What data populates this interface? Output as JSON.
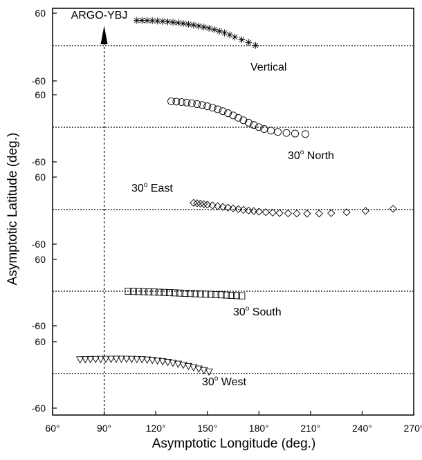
{
  "chart_data": {
    "type": "scatter",
    "xlabel": "Asymptotic Longitude (deg.)",
    "ylabel": "Asymptotic Latitude (deg.)",
    "xlim": [
      60,
      270
    ],
    "x_ticks": [
      "60°",
      "90°",
      "120°",
      "150°",
      "180°",
      "210°",
      "240°",
      "270°"
    ],
    "x_tick_values": [
      60,
      90,
      120,
      150,
      180,
      210,
      240,
      270
    ],
    "ylim_per_panel": [
      -60,
      60
    ],
    "y_tick_top": "60",
    "y_tick_bottom": "-60",
    "grid": false,
    "reference_line": {
      "x": 90,
      "label": "ARGO-YBJ"
    },
    "panels": [
      {
        "name": "Vertical",
        "label": "Vertical",
        "marker": "asterisk",
        "x": [
          109,
          112,
          115,
          118,
          121,
          124,
          127,
          130,
          133,
          136,
          139,
          142,
          145,
          148,
          151,
          154,
          157,
          160,
          163,
          166,
          170,
          174,
          178
        ],
        "y": [
          46.5,
          46.5,
          46.3,
          46,
          45.5,
          44.9,
          44.1,
          43.2,
          42.1,
          40.9,
          39.5,
          38,
          36.3,
          34.3,
          32.1,
          29.6,
          26.8,
          23.6,
          20,
          16,
          11,
          6,
          0.5
        ]
      },
      {
        "name": "30° North",
        "label": "30° North",
        "label_prefix": "30",
        "label_suffix": "North",
        "marker": "circle",
        "x": [
          129,
          132,
          135,
          138,
          141,
          144,
          147,
          150,
          153,
          156,
          159,
          162,
          165,
          168,
          171,
          174,
          177,
          180,
          183,
          187,
          191,
          196,
          201,
          207
        ],
        "y": [
          48,
          47.3,
          46.5,
          45.5,
          44.3,
          42.8,
          41,
          38.8,
          36.2,
          33.2,
          29.8,
          26,
          21.9,
          17.5,
          13,
          8.5,
          4.3,
          0.3,
          -3.2,
          -6.2,
          -8.6,
          -10.4,
          -11.6,
          -12.5
        ]
      },
      {
        "name": "30° East",
        "label": "30° East",
        "label_prefix": "30",
        "label_suffix": "East",
        "marker": "diamond",
        "x": [
          142,
          144,
          146,
          148,
          150,
          153,
          156,
          159,
          162,
          165,
          168,
          171,
          174,
          177,
          180,
          184,
          188,
          192,
          197,
          202,
          208,
          215,
          222,
          231,
          242,
          258
        ],
        "y": [
          12.5,
          11.8,
          11,
          10.1,
          9.1,
          7.8,
          6.4,
          5,
          3.6,
          2.2,
          0.8,
          -0.5,
          -1.7,
          -2.8,
          -3.8,
          -4.8,
          -5.6,
          -6.3,
          -6.9,
          -7.3,
          -7.5,
          -7.3,
          -6.6,
          -4.9,
          -2.4,
          1.5
        ]
      },
      {
        "name": "30° South",
        "label": "30° South",
        "label_prefix": "30",
        "label_suffix": "South",
        "marker": "square",
        "x": [
          104,
          107,
          110,
          113,
          116,
          119,
          122,
          125,
          128,
          131,
          134,
          137,
          140,
          143,
          146,
          149,
          152,
          155,
          158,
          161,
          164,
          167,
          170
        ],
        "y": [
          0,
          -0.3,
          -0.6,
          -0.9,
          -1.2,
          -1.5,
          -1.9,
          -2.3,
          -2.7,
          -3.1,
          -3.5,
          -3.9,
          -4.3,
          -4.7,
          -5.1,
          -5.5,
          -5.9,
          -6.4,
          -6.8,
          -7.3,
          -7.8,
          -8.3,
          -8.8
        ]
      },
      {
        "name": "30° West",
        "label": "30° West",
        "label_prefix": "30",
        "label_suffix": "West",
        "marker": "triangle-down",
        "x": [
          76,
          79,
          82,
          85,
          88,
          91,
          94,
          97,
          100,
          103,
          106,
          109,
          112,
          115,
          118,
          121,
          124,
          127,
          130,
          133,
          136,
          139,
          142,
          145,
          148,
          151
        ],
        "y": [
          26.5,
          26.7,
          26.9,
          27.1,
          27.3,
          27.4,
          27.5,
          27.6,
          27.6,
          27.5,
          27.3,
          27,
          26.6,
          26,
          25.2,
          24.2,
          23,
          21.6,
          20,
          18.2,
          16.2,
          14,
          11.6,
          9,
          6.3,
          3.5
        ]
      }
    ]
  }
}
